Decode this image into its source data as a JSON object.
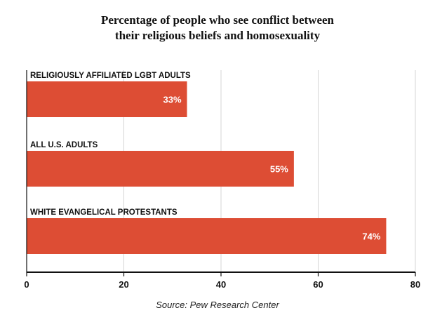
{
  "chart_data": {
    "type": "bar",
    "orientation": "horizontal",
    "title_lines": [
      "Percentage of people who see conflict between",
      "their religious beliefs and homosexuality"
    ],
    "categories": [
      "RELIGIOUSLY AFFILIATED LGBT ADULTS",
      "ALL U.S. ADULTS",
      "WHITE EVANGELICAL PROTESTANTS"
    ],
    "values": [
      33,
      55,
      74
    ],
    "value_labels": [
      "33%",
      "55%",
      "74%"
    ],
    "xlim": [
      0,
      80
    ],
    "xticks": [
      0,
      20,
      40,
      60,
      80
    ],
    "xtick_labels": [
      "0",
      "20",
      "40",
      "60",
      "80"
    ],
    "xlabel": "",
    "ylabel": "",
    "grid": true,
    "legend": "none",
    "source": "Source: Pew Research Center"
  },
  "colors": {
    "bar": "#dd4d34",
    "grid": "#d4d4d4",
    "axis": "#111111",
    "label": "#111111",
    "value_label": "#ffffff"
  }
}
